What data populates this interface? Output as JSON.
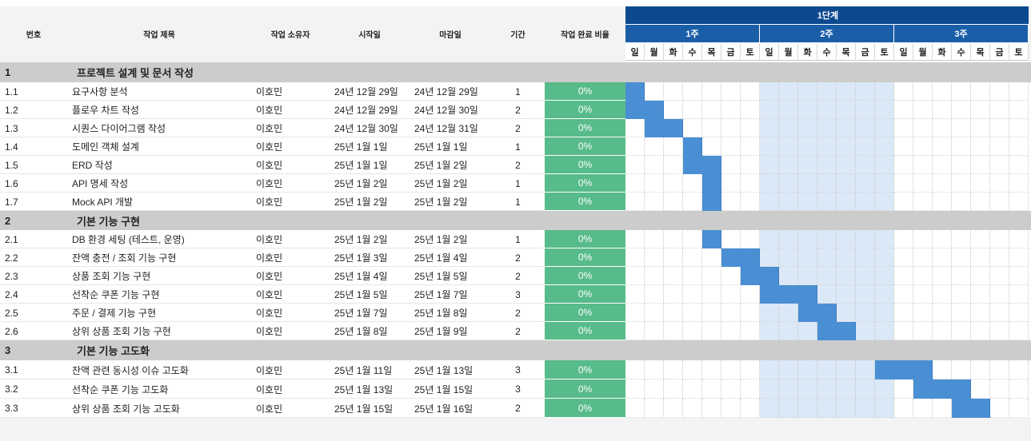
{
  "headers": {
    "no": "번호",
    "title": "작업 제목",
    "owner": "작업 소유자",
    "start": "시작일",
    "end": "마감일",
    "duration": "기간",
    "progress": "작업 완료 비율",
    "phase": "1단계",
    "weeks": [
      "1주",
      "2주",
      "3주"
    ],
    "days": [
      "일",
      "월",
      "화",
      "수",
      "목",
      "금",
      "토",
      "일",
      "월",
      "화",
      "수",
      "목",
      "금",
      "토",
      "일",
      "월",
      "화",
      "수",
      "목",
      "금",
      "토"
    ]
  },
  "colors": {
    "phase_header": "#0b4a8f",
    "week_header": "#1a5ea8",
    "section_row": "#cccccc",
    "progress_cell": "#57bb8a",
    "gantt_bar": "#4a8fd4",
    "week2_shade": "#dbe8f7"
  },
  "rows": [
    {
      "type": "section",
      "no": "1",
      "title": "프로젝트 설계 및 문서 작성"
    },
    {
      "type": "task",
      "no": "1.1",
      "title": "요구사항 분석",
      "owner": "이호민",
      "start": "24년 12월 29일",
      "end": "24년 12월 29일",
      "duration": "1",
      "progress": "0%",
      "bar_start_day": 0,
      "bar_days": 1
    },
    {
      "type": "task",
      "no": "1.2",
      "title": "플로우 차트 작성",
      "owner": "이호민",
      "start": "24년 12월 29일",
      "end": "24년 12월 30일",
      "duration": "2",
      "progress": "0%",
      "bar_start_day": 0,
      "bar_days": 2
    },
    {
      "type": "task",
      "no": "1.3",
      "title": "시퀀스 다이어그램 작성",
      "owner": "이호민",
      "start": "24년 12월 30일",
      "end": "24년 12월 31일",
      "duration": "2",
      "progress": "0%",
      "bar_start_day": 1,
      "bar_days": 2
    },
    {
      "type": "task",
      "no": "1.4",
      "title": "도메인 객체 설계",
      "owner": "이호민",
      "start": "25년 1월 1일",
      "end": "25년 1월 1일",
      "duration": "1",
      "progress": "0%",
      "bar_start_day": 3,
      "bar_days": 1
    },
    {
      "type": "task",
      "no": "1.5",
      "title": "ERD 작성",
      "owner": "이호민",
      "start": "25년 1월 1일",
      "end": "25년 1월 2일",
      "duration": "2",
      "progress": "0%",
      "bar_start_day": 3,
      "bar_days": 2
    },
    {
      "type": "task",
      "no": "1.6",
      "title": "API 명세 작성",
      "owner": "이호민",
      "start": "25년 1월 2일",
      "end": "25년 1월 2일",
      "duration": "1",
      "progress": "0%",
      "bar_start_day": 4,
      "bar_days": 1
    },
    {
      "type": "task",
      "no": "1.7",
      "title": "Mock API 개발",
      "owner": "이호민",
      "start": "25년 1월 2일",
      "end": "25년 1월 2일",
      "duration": "1",
      "progress": "0%",
      "bar_start_day": 4,
      "bar_days": 1
    },
    {
      "type": "section",
      "no": "2",
      "title": "기본 기능 구현"
    },
    {
      "type": "task",
      "no": "2.1",
      "title": "DB 환경 세팅 (테스트, 운영)",
      "owner": "이호민",
      "start": "25년 1월 2일",
      "end": "25년 1월 2일",
      "duration": "1",
      "progress": "0%",
      "bar_start_day": 4,
      "bar_days": 1
    },
    {
      "type": "task",
      "no": "2.2",
      "title": "잔액 충전 / 조회 기능 구현",
      "owner": "이호민",
      "start": "25년 1월 3일",
      "end": "25년 1월 4일",
      "duration": "2",
      "progress": "0%",
      "bar_start_day": 5,
      "bar_days": 2
    },
    {
      "type": "task",
      "no": "2.3",
      "title": "상품 조회 기능 구현",
      "owner": "이호민",
      "start": "25년 1월 4일",
      "end": "25년 1월 5일",
      "duration": "2",
      "progress": "0%",
      "bar_start_day": 6,
      "bar_days": 2
    },
    {
      "type": "task",
      "no": "2.4",
      "title": "선착순 쿠폰 기능 구현",
      "owner": "이호민",
      "start": "25년 1월 5일",
      "end": "25년 1월 7일",
      "duration": "3",
      "progress": "0%",
      "bar_start_day": 7,
      "bar_days": 3
    },
    {
      "type": "task",
      "no": "2.5",
      "title": "주문 / 결제 기능 구현",
      "owner": "이호민",
      "start": "25년 1월 7일",
      "end": "25년 1월 8일",
      "duration": "2",
      "progress": "0%",
      "bar_start_day": 9,
      "bar_days": 2
    },
    {
      "type": "task",
      "no": "2.6",
      "title": "상위 상품 조회 기능 구현",
      "owner": "이호민",
      "start": "25년 1월 8일",
      "end": "25년 1월 9일",
      "duration": "2",
      "progress": "0%",
      "bar_start_day": 10,
      "bar_days": 2
    },
    {
      "type": "section",
      "no": "3",
      "title": "기본 기능 고도화"
    },
    {
      "type": "task",
      "no": "3.1",
      "title": "잔액 관련 동시성 이슈 고도화",
      "owner": "이호민",
      "start": "25년 1월 11일",
      "end": "25년 1월 13일",
      "duration": "3",
      "progress": "0%",
      "bar_start_day": 13,
      "bar_days": 3
    },
    {
      "type": "task",
      "no": "3.2",
      "title": "선착순 쿠폰 기능 고도화",
      "owner": "이호민",
      "start": "25년 1월 13일",
      "end": "25년 1월 15일",
      "duration": "3",
      "progress": "0%",
      "bar_start_day": 15,
      "bar_days": 3
    },
    {
      "type": "task",
      "no": "3.3",
      "title": "상위 상품  조회 기능 고도화",
      "owner": "이호민",
      "start": "25년 1월 15일",
      "end": "25년 1월 16일",
      "duration": "2",
      "progress": "0%",
      "bar_start_day": 17,
      "bar_days": 2
    }
  ]
}
